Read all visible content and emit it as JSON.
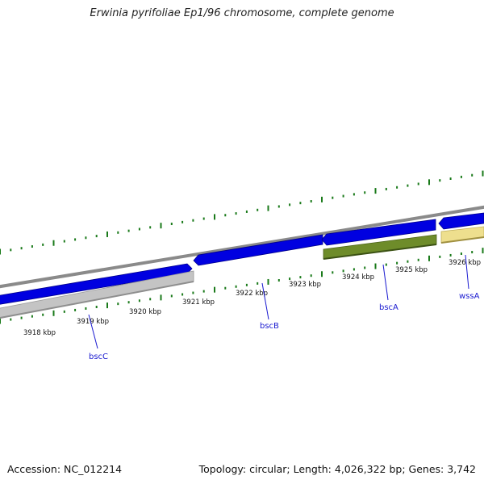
{
  "title": "Erwinia pyrifoliae Ep1/96 chromosome, complete genome",
  "accession": "Accession: NC_012214",
  "topology": "Topology: circular; Length: 4,026,322 bp; Genes: 3,742",
  "colors": {
    "backbone": "#8a8a8a",
    "tick": "#1a7a1a",
    "gene_forward": "#0000e0",
    "gene_blue_alt": "#1010f0",
    "gene_gray": "#c0c0c0",
    "gene_olive": "#6e8c2a",
    "gene_yellow": "#eedf8e",
    "label": "#1a1ad0"
  },
  "scale": {
    "tick_labels": [
      "3918 kbp",
      "3919 kbp",
      "3920 kbp",
      "3921 kbp",
      "3922 kbp",
      "3923 kbp",
      "3924 kbp",
      "3925 kbp",
      "3926 kbp"
    ]
  },
  "genes": [
    {
      "label": "bscC"
    },
    {
      "label": "bscB"
    },
    {
      "label": "bscA"
    },
    {
      "label": "wssA"
    }
  ]
}
